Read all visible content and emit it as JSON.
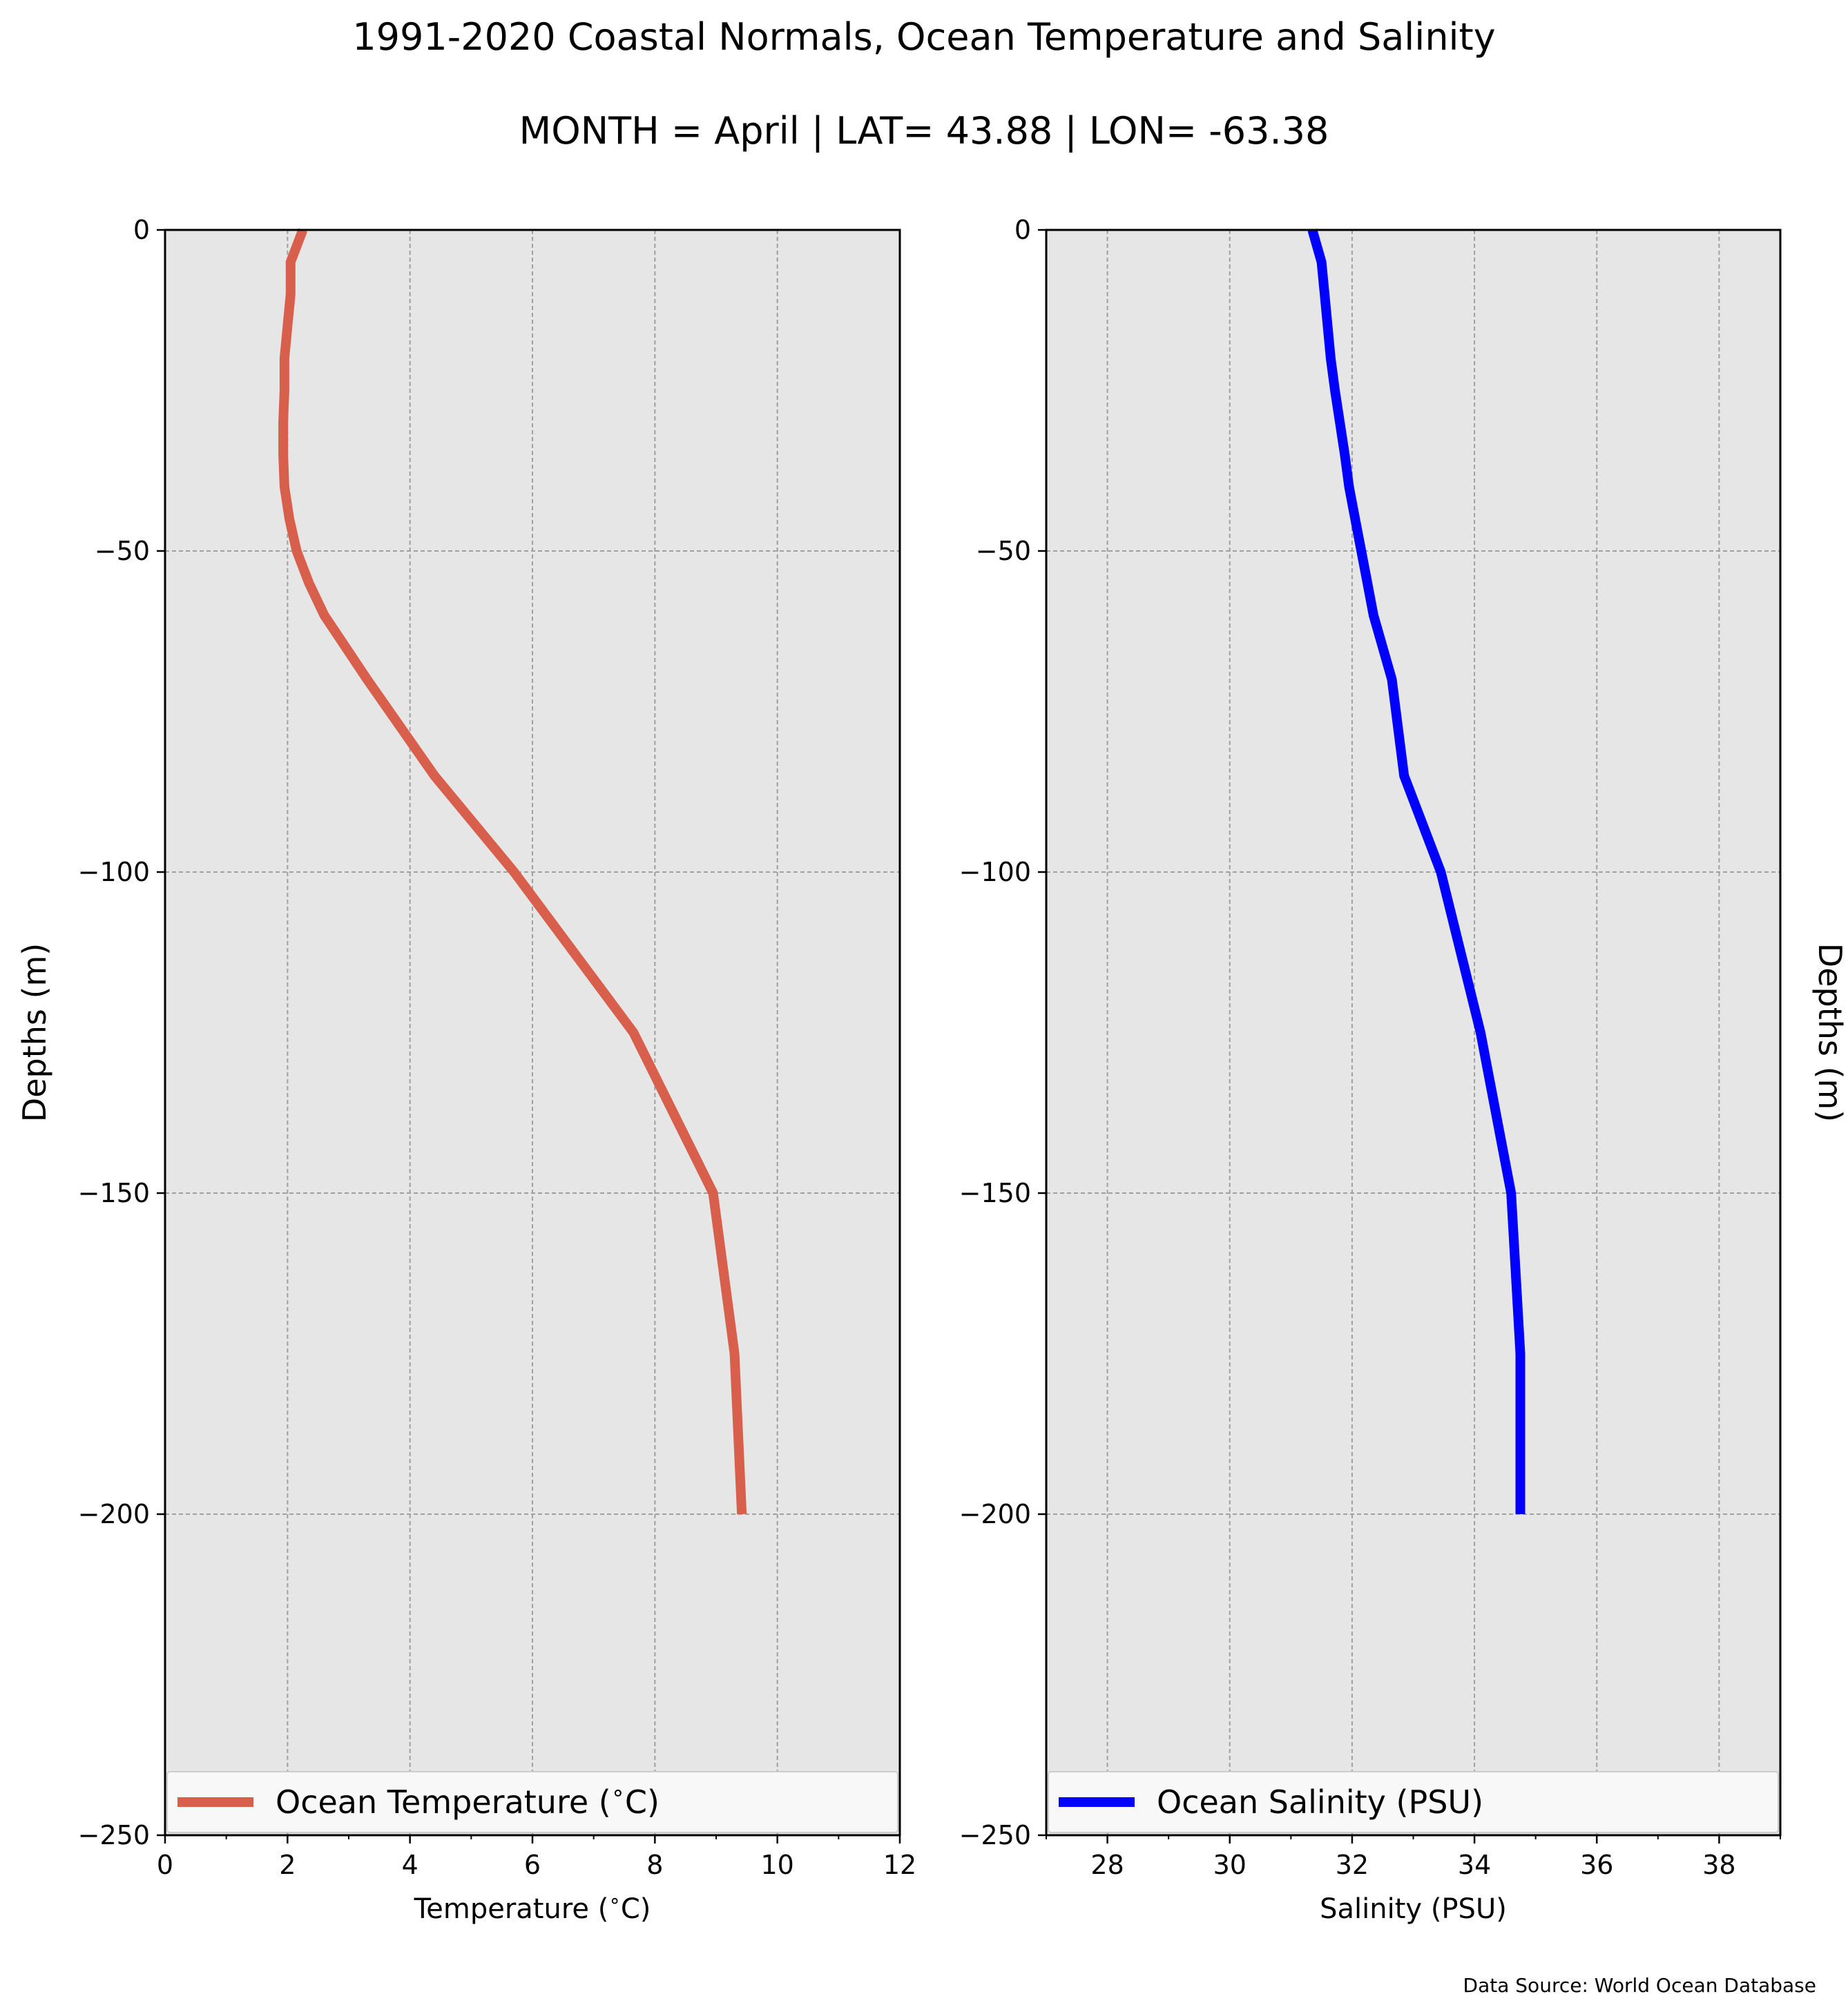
{
  "figure": {
    "title": "1991-2020 Coastal Normals, Ocean Temperature and Salinity",
    "subtitle": "MONTH = April | LAT= 43.88 | LON= -63.38",
    "source": "Data Source: World Ocean Database"
  },
  "chart_data": [
    {
      "type": "line",
      "orientation": "depth-profile",
      "xlabel": "Temperature ($^\\circ$C)",
      "ylabel": "Depths (m)",
      "xlim": [
        0,
        12
      ],
      "ylim": [
        -250,
        0
      ],
      "xticks": [
        "0",
        "2",
        "4",
        "6",
        "8",
        "10",
        "12"
      ],
      "yticks": [
        "0",
        "−50",
        "−100",
        "−150",
        "−200",
        "−250"
      ],
      "grid": true,
      "background": "#e6e6e6",
      "legend_position": "lower",
      "legend_label": "Ocean Temperature ($^\\circ$C)",
      "series": [
        {
          "name": "Ocean Temperature ($^\\circ$C)",
          "color": "#d75f4b",
          "x": [
            2.25,
            2.05,
            2.05,
            2.0,
            1.95,
            1.95,
            1.93,
            1.93,
            1.95,
            2.03,
            2.15,
            2.35,
            2.6,
            3.3,
            4.4,
            5.7,
            7.65,
            8.95,
            9.3,
            9.42
          ],
          "y": [
            0,
            -5,
            -10,
            -15,
            -20,
            -25,
            -30,
            -35,
            -40,
            -45,
            -50,
            -55,
            -60,
            -70,
            -85,
            -100,
            -125,
            -150,
            -175,
            -200
          ]
        }
      ]
    },
    {
      "type": "line",
      "orientation": "depth-profile",
      "xlabel": "Salinity (PSU)",
      "ylabel": "Depths (m)",
      "xlim": [
        27,
        39
      ],
      "ylim": [
        -250,
        0
      ],
      "xticks": [
        "28",
        "30",
        "32",
        "34",
        "36",
        "38"
      ],
      "yticks": [
        "0",
        "−50",
        "−100",
        "−150",
        "−200",
        "−250"
      ],
      "grid": true,
      "background": "#e6e6e6",
      "legend_position": "lower",
      "legend_label": "Ocean Salinity (PSU)",
      "series": [
        {
          "name": "Ocean Salinity (PSU)",
          "color": "#0000ff",
          "x": [
            31.35,
            31.5,
            31.55,
            31.6,
            31.65,
            31.72,
            31.8,
            31.88,
            31.95,
            32.05,
            32.15,
            32.25,
            32.35,
            32.65,
            32.85,
            33.45,
            34.1,
            34.6,
            34.75,
            34.75
          ],
          "y": [
            0,
            -5,
            -10,
            -15,
            -20,
            -25,
            -30,
            -35,
            -40,
            -45,
            -50,
            -55,
            -60,
            -70,
            -85,
            -100,
            -125,
            -150,
            -175,
            -200
          ]
        }
      ]
    }
  ]
}
